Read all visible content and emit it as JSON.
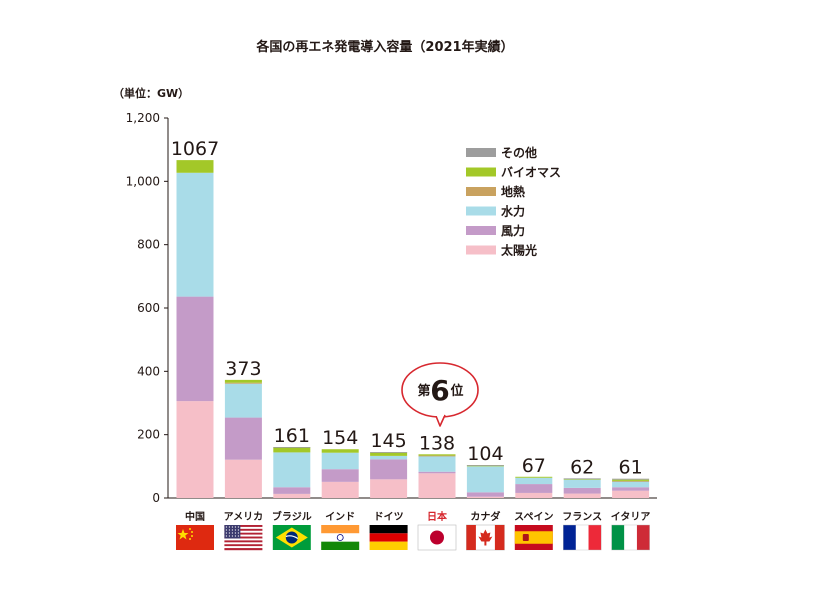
{
  "chart_data": {
    "type": "bar",
    "stacked": true,
    "title": "各国の再エネ発電導入容量（2021年実績）",
    "unit_label": "（単位：GW）",
    "ylim": [
      0,
      1200
    ],
    "yticks": [
      0,
      200,
      400,
      600,
      800,
      "1,000",
      "1,200"
    ],
    "categories": [
      "中国",
      "アメリカ",
      "ブラジル",
      "インド",
      "ドイツ",
      "日本",
      "カナダ",
      "スペイン",
      "フランス",
      "イタリア"
    ],
    "totals": [
      1067,
      373,
      161,
      154,
      145,
      138,
      104,
      67,
      62,
      61
    ],
    "highlight_category": "日本",
    "highlight_color": "#d7282f",
    "callout": {
      "prefix": "第",
      "rank": "6",
      "suffix": "位"
    },
    "legend_position": "top-right",
    "series": [
      {
        "name": "太陽光",
        "color": "#f6bfc8",
        "values": [
          306,
          121,
          13,
          51,
          59,
          78,
          4,
          16,
          14,
          23
        ]
      },
      {
        "name": "風力",
        "color": "#c49bc8",
        "values": [
          330,
          133,
          21,
          40,
          63,
          5,
          14,
          28,
          18,
          11
        ]
      },
      {
        "name": "水力",
        "color": "#a9dce8",
        "values": [
          391,
          107,
          110,
          52,
          11,
          50,
          82,
          20,
          26,
          19
        ]
      },
      {
        "name": "地熱",
        "color": "#c9a25f",
        "values": [
          0,
          3,
          0,
          0,
          0,
          1,
          0,
          0,
          0,
          1
        ]
      },
      {
        "name": "バイオマス",
        "color": "#a3c828",
        "values": [
          40,
          9,
          16,
          11,
          11,
          4,
          3,
          3,
          3,
          4
        ]
      },
      {
        "name": "その他",
        "color": "#9d9d9d",
        "values": [
          0,
          0,
          1,
          0,
          1,
          0,
          1,
          0,
          1,
          3
        ]
      }
    ],
    "flags": [
      {
        "country": "中国",
        "icon": "china-flag-icon"
      },
      {
        "country": "アメリカ",
        "icon": "usa-flag-icon"
      },
      {
        "country": "ブラジル",
        "icon": "brazil-flag-icon"
      },
      {
        "country": "インド",
        "icon": "india-flag-icon"
      },
      {
        "country": "ドイツ",
        "icon": "germany-flag-icon"
      },
      {
        "country": "日本",
        "icon": "japan-flag-icon"
      },
      {
        "country": "カナダ",
        "icon": "canada-flag-icon"
      },
      {
        "country": "スペイン",
        "icon": "spain-flag-icon"
      },
      {
        "country": "フランス",
        "icon": "france-flag-icon"
      },
      {
        "country": "イタリア",
        "icon": "italy-flag-icon"
      }
    ]
  }
}
